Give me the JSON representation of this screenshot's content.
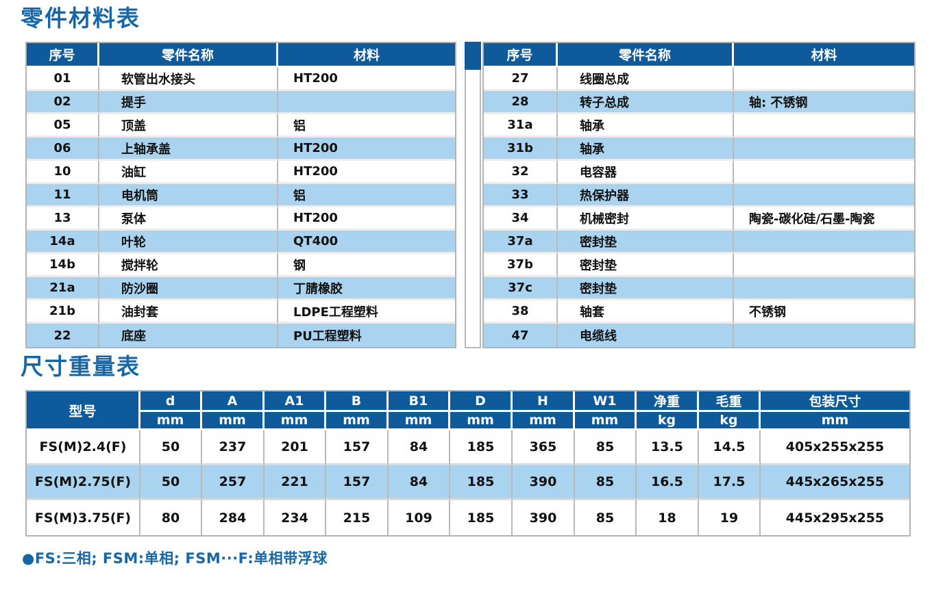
{
  "colors": {
    "header_bg": "#0e5a9a",
    "row_alt_bg": "#a9d3ee",
    "title_text": "#1567a7",
    "footnote_text": "#1567a7"
  },
  "parts_section": {
    "title": "零件材料表",
    "columns": {
      "no": "序号",
      "name": "零件名称",
      "material": "材料"
    },
    "left_table": {
      "rows": [
        [
          "01",
          "软管出水接头",
          "HT200"
        ],
        [
          "02",
          "提手",
          ""
        ],
        [
          "05",
          "顶盖",
          "铝"
        ],
        [
          "06",
          "上轴承盖",
          "HT200"
        ],
        [
          "10",
          "油缸",
          "HT200"
        ],
        [
          "11",
          "电机筒",
          "铝"
        ],
        [
          "13",
          "泵体",
          "HT200"
        ],
        [
          "14a",
          "叶轮",
          "QT400"
        ],
        [
          "14b",
          "搅拌轮",
          "钢"
        ],
        [
          "21a",
          "防沙圈",
          "丁腈橡胶"
        ],
        [
          "21b",
          "油封套",
          "LDPE工程塑料"
        ],
        [
          "22",
          "底座",
          "PU工程塑料"
        ]
      ]
    },
    "right_table": {
      "rows": [
        [
          "27",
          "线圈总成",
          ""
        ],
        [
          "28",
          "转子总成",
          "轴: 不锈钢"
        ],
        [
          "31a",
          "轴承",
          ""
        ],
        [
          "31b",
          "轴承",
          ""
        ],
        [
          "32",
          "电容器",
          ""
        ],
        [
          "33",
          "热保护器",
          ""
        ],
        [
          "34",
          "机械密封",
          "陶瓷-碳化硅/石墨-陶瓷"
        ],
        [
          "37a",
          "密封垫",
          ""
        ],
        [
          "37b",
          "密封垫",
          ""
        ],
        [
          "37c",
          "密封垫",
          ""
        ],
        [
          "38",
          "轴套",
          "不锈钢"
        ],
        [
          "47",
          "电缆线",
          ""
        ]
      ]
    }
  },
  "dims_section": {
    "title": "尺寸重量表",
    "model_header": "型号",
    "col_labels": [
      "d",
      "A",
      "A1",
      "B",
      "B1",
      "D",
      "H",
      "W1",
      "净重",
      "毛重",
      "包装尺寸"
    ],
    "col_units": [
      "mm",
      "mm",
      "mm",
      "mm",
      "mm",
      "mm",
      "mm",
      "mm",
      "kg",
      "kg",
      "mm"
    ],
    "rows": [
      [
        "FS(M)2.4(F)",
        "50",
        "237",
        "201",
        "157",
        "84",
        "185",
        "365",
        "85",
        "13.5",
        "14.5",
        "405x255x255"
      ],
      [
        "FS(M)2.75(F)",
        "50",
        "257",
        "221",
        "157",
        "84",
        "185",
        "390",
        "85",
        "16.5",
        "17.5",
        "445x265x255"
      ],
      [
        "FS(M)3.75(F)",
        "80",
        "284",
        "234",
        "215",
        "109",
        "185",
        "390",
        "85",
        "18",
        "19",
        "445x295x255"
      ]
    ],
    "footnote": "●FS:三相; FSM:单相; FSM···F:单相带浮球"
  }
}
